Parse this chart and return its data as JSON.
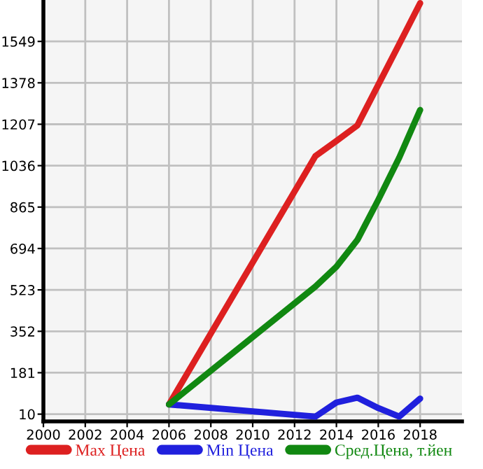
{
  "chart_data": {
    "type": "line",
    "x": [
      2006,
      2013,
      2014,
      2015,
      2016,
      2017,
      2018
    ],
    "series": [
      {
        "name": "Max Цена",
        "color": "#dd2020",
        "values": [
          50,
          1076,
          1138,
          1202,
          1370,
          1538,
          1707
        ]
      },
      {
        "name": "Min Цена",
        "color": "#2020dd",
        "values": [
          50,
          0,
          58,
          78,
          35,
          0,
          74
        ]
      },
      {
        "name": "Сред.Цена, т.йен",
        "color": "#118811",
        "values": [
          50,
          537,
          619,
          729,
          895,
          1069,
          1266
        ]
      }
    ],
    "xlim": [
      2000,
      2020
    ],
    "xticks": [
      2000,
      2002,
      2004,
      2006,
      2008,
      2010,
      2012,
      2014,
      2016,
      2018
    ],
    "ylim": [
      -20,
      1720
    ],
    "yticks": [
      10,
      181,
      352,
      523,
      694,
      865,
      1036,
      1207,
      1378,
      1549
    ],
    "grid": true,
    "legend": "bottom",
    "marker": "none",
    "line_style": "solid"
  }
}
